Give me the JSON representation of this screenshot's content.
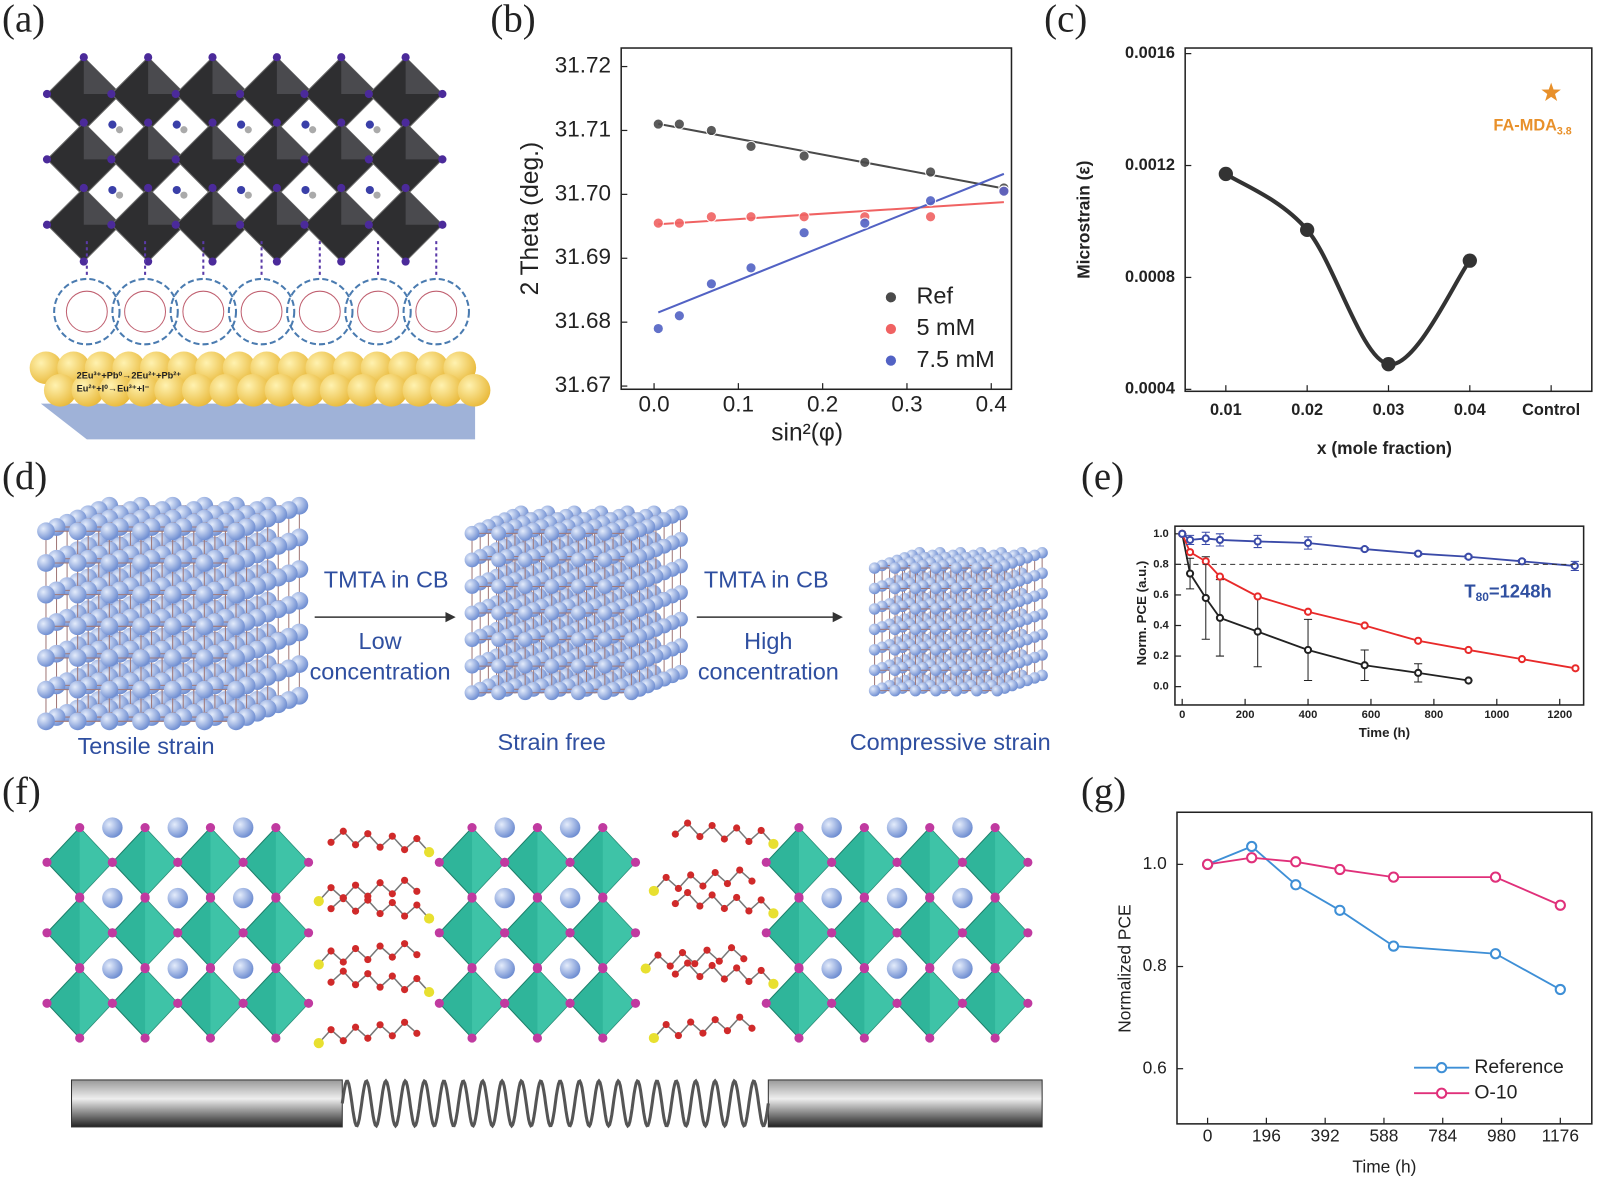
{
  "panels": [
    "(a)",
    "(b)",
    "(c)",
    "(d)",
    "(e)",
    "(f)",
    "(g)"
  ],
  "panel_a": {
    "equations": [
      "2Eu³⁺+Pb⁰→2Eu²⁺+Pb²⁺",
      "Eu²⁺+I⁰→Eu³⁺+I⁻"
    ]
  },
  "panel_d": {
    "arrows": [
      {
        "top": "TMTA in CB",
        "bottom": [
          "Low",
          "concentration"
        ]
      },
      {
        "top": "TMTA in CB",
        "bottom": [
          "High",
          "concentration"
        ]
      }
    ],
    "states": [
      "Tensile strain",
      "Strain free",
      "Compressive strain"
    ]
  },
  "chart_data": [
    {
      "type": "scatter",
      "x_label": "sin²(φ)",
      "y_label": "2 Theta (deg.)",
      "x": [
        0.005,
        0.03,
        0.068,
        0.115,
        0.178,
        0.25,
        0.328,
        0.415
      ],
      "series": [
        {
          "name": "Ref",
          "color": "#4a4a4a",
          "values": [
            31.711,
            31.711,
            31.71,
            31.7075,
            31.706,
            31.705,
            31.7035,
            31.701
          ]
        },
        {
          "name": "5 mM",
          "color": "#f06262",
          "values": [
            31.6955,
            31.6955,
            31.6965,
            31.6965,
            31.6965,
            31.6965,
            31.6965,
            31.7005
          ]
        },
        {
          "name": "7.5 mM",
          "color": "#5262c4",
          "values": [
            31.679,
            31.681,
            31.686,
            31.6885,
            31.694,
            31.6955,
            31.699,
            31.7005
          ]
        }
      ],
      "fit": "linear",
      "xlim": [
        -0.039,
        0.424
      ],
      "xticks": [
        {
          "value": 0,
          "label": "0.0"
        },
        0.1,
        0.2,
        0.3,
        0.4
      ],
      "ylim": [
        31.6695,
        31.7229
      ],
      "yticks": [
        31.67,
        31.68,
        31.69,
        {
          "value": 31.7,
          "label": "31.70"
        },
        31.71,
        31.72
      ],
      "legend": "lower right"
    },
    {
      "type": "line",
      "x_label": "x (mole fraction)",
      "y_label": "Microstrain (ε)",
      "categories": [
        "0.01",
        "0.02",
        "0.03",
        "0.04",
        "Control"
      ],
      "series": [
        {
          "color": "#333333",
          "smooth": true,
          "values": [
            0.00117,
            0.00097,
            0.00049,
            0.00086,
            null
          ]
        },
        {
          "color": "#e8902a",
          "marker": "star",
          "values": [
            null,
            null,
            null,
            null,
            0.00146
          ]
        }
      ],
      "annotation": {
        "text": "FA-MDA",
        "sub": "3.8"
      },
      "ylim": [
        0.000393,
        0.00162
      ],
      "yticks": [
        0.0004,
        0.0008,
        0.0012,
        0.0016
      ]
    },
    {
      "type": "line",
      "x_label": "Time (h)",
      "y_label": "Norm. PCE (a.u.)",
      "series": [
        {
          "color": "#222222",
          "x": [
            0,
            25,
            75,
            120,
            240,
            400,
            580,
            750,
            910
          ],
          "values": [
            1.0,
            0.74,
            0.58,
            0.45,
            0.36,
            0.24,
            0.14,
            0.09,
            0.04
          ],
          "errors": [
            0,
            0.1,
            0.27,
            0.25,
            0.23,
            0.2,
            0.1,
            0.06,
            0
          ]
        },
        {
          "color": "#e82a2a",
          "x": [
            0,
            25,
            75,
            120,
            240,
            400,
            580,
            750,
            910,
            1080,
            1250
          ],
          "values": [
            1.0,
            0.88,
            0.82,
            0.72,
            0.59,
            0.49,
            0.4,
            0.3,
            0.24,
            0.18,
            0.12
          ]
        },
        {
          "color": "#3a4aa8",
          "x": [
            0,
            25,
            75,
            120,
            240,
            400,
            580,
            750,
            910,
            1080,
            1248
          ],
          "values": [
            1.0,
            0.96,
            0.97,
            0.96,
            0.95,
            0.94,
            0.9,
            0.87,
            0.85,
            0.82,
            0.79
          ],
          "errors": [
            0,
            0.03,
            0.04,
            0.04,
            0.04,
            0.04,
            0.01,
            0.01,
            0.01,
            0.01,
            0.03
          ]
        }
      ],
      "reference_line": 0.8,
      "annotation": {
        "text": "T",
        "sub": "80",
        "tail": "=1248h"
      },
      "xlim": [
        -23,
        1276
      ],
      "xticks": [
        0,
        200,
        400,
        600,
        800,
        1000,
        1200
      ],
      "ylim": [
        -0.12,
        1.05
      ],
      "yticks": [
        {
          "value": 0,
          "label": "0.0"
        },
        0.2,
        0.4,
        0.6,
        0.8,
        {
          "value": 1,
          "label": "1.0"
        }
      ]
    },
    {
      "type": "line",
      "x_label": "Time (h)",
      "y_label": "Normalized PCE",
      "x": [
        0,
        147,
        294,
        441,
        620,
        960,
        1176
      ],
      "series": [
        {
          "name": "Reference",
          "color": "#3e8fd6",
          "values": [
            1.0,
            1.035,
            0.96,
            0.91,
            0.84,
            0.825,
            0.755
          ]
        },
        {
          "name": "O-10",
          "color": "#e0307a",
          "values": [
            1.0,
            1.013,
            1.005,
            0.99,
            0.975,
            0.975,
            0.92
          ]
        }
      ],
      "xlim": [
        -102,
        1281
      ],
      "xticks": [
        0,
        196,
        392,
        588,
        784,
        980,
        1176
      ],
      "ylim": [
        0.492,
        1.102
      ],
      "yticks": [
        0.6,
        0.8,
        {
          "value": 1,
          "label": "1.0"
        }
      ],
      "legend": "lower right"
    }
  ]
}
